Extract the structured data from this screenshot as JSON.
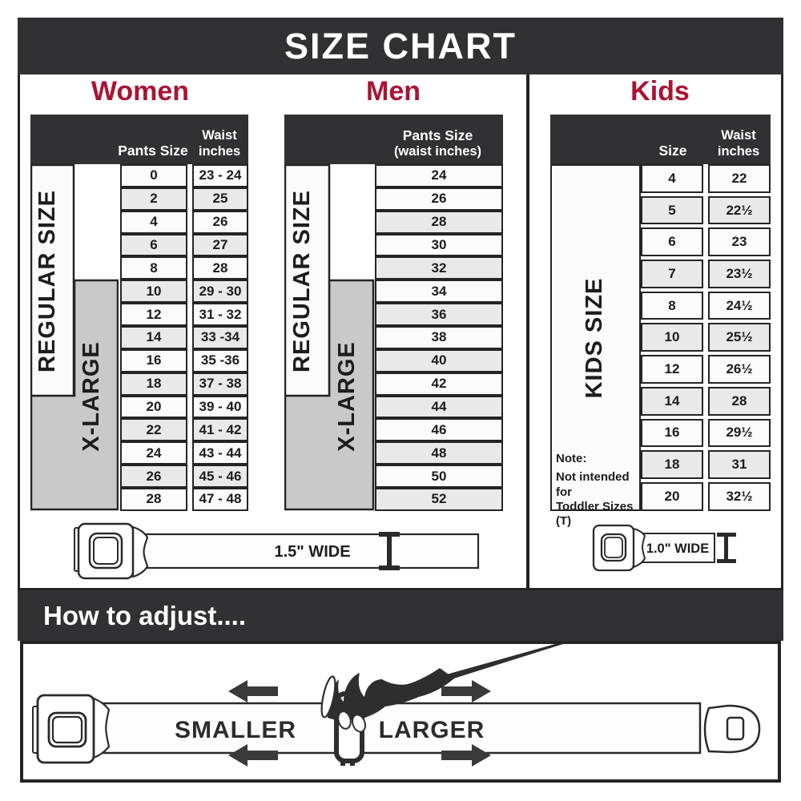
{
  "title": "SIZE CHART",
  "colors": {
    "dark_bar": "#313133",
    "heading_red": "#a91434",
    "row_shade": "#e9e9e9",
    "label_gray": "#c9c9c9",
    "border": "#242424"
  },
  "sections": {
    "women": {
      "label": "Women",
      "col1_header": "Pants Size",
      "col2_header_line1": "Waist",
      "col2_header_line2": "inches",
      "regular_label": "REGULAR SIZE",
      "xlarge_label": "X-LARGE",
      "rows": [
        {
          "size": "0",
          "waist": "23 - 24",
          "shaded": false
        },
        {
          "size": "2",
          "waist": "25",
          "shaded": true
        },
        {
          "size": "4",
          "waist": "26",
          "shaded": false
        },
        {
          "size": "6",
          "waist": "27",
          "shaded": true
        },
        {
          "size": "8",
          "waist": "28",
          "shaded": false
        },
        {
          "size": "10",
          "waist": "29 - 30",
          "shaded": true
        },
        {
          "size": "12",
          "waist": "31 - 32",
          "shaded": false
        },
        {
          "size": "14",
          "waist": "33 -34",
          "shaded": true
        },
        {
          "size": "16",
          "waist": "35 -36",
          "shaded": false
        },
        {
          "size": "18",
          "waist": "37 - 38",
          "shaded": true
        },
        {
          "size": "20",
          "waist": "39 - 40",
          "shaded": false
        },
        {
          "size": "22",
          "waist": "41 - 42",
          "shaded": true
        },
        {
          "size": "24",
          "waist": "43 - 44",
          "shaded": false
        },
        {
          "size": "26",
          "waist": "45 - 46",
          "shaded": true
        },
        {
          "size": "28",
          "waist": "47 - 48",
          "shaded": false
        }
      ]
    },
    "men": {
      "label": "Men",
      "header_line1": "Pants Size",
      "header_line2": "(waist inches)",
      "regular_label": "REGULAR SIZE",
      "xlarge_label": "X-LARGE",
      "rows": [
        {
          "size": "24",
          "shaded": false
        },
        {
          "size": "26",
          "shaded": false
        },
        {
          "size": "28",
          "shaded": true
        },
        {
          "size": "30",
          "shaded": false
        },
        {
          "size": "32",
          "shaded": true
        },
        {
          "size": "34",
          "shaded": false
        },
        {
          "size": "36",
          "shaded": true
        },
        {
          "size": "38",
          "shaded": false
        },
        {
          "size": "40",
          "shaded": true
        },
        {
          "size": "42",
          "shaded": false
        },
        {
          "size": "44",
          "shaded": true
        },
        {
          "size": "46",
          "shaded": false
        },
        {
          "size": "48",
          "shaded": true
        },
        {
          "size": "50",
          "shaded": false
        },
        {
          "size": "52",
          "shaded": true
        }
      ]
    },
    "kids": {
      "label": "Kids",
      "col1_header": "Size",
      "col2_header_line1": "Waist",
      "col2_header_line2": "inches",
      "side_label": "KIDS SIZE",
      "note_line1": "Note:",
      "note_line2": "Not intended for",
      "note_line3": "Toddler Sizes (T)",
      "rows": [
        {
          "size": "4",
          "waist": "22",
          "shaded": false
        },
        {
          "size": "5",
          "waist": "22½",
          "shaded": true
        },
        {
          "size": "6",
          "waist": "23",
          "shaded": false
        },
        {
          "size": "7",
          "waist": "23½",
          "shaded": true
        },
        {
          "size": "8",
          "waist": "24½",
          "shaded": false
        },
        {
          "size": "10",
          "waist": "25½",
          "shaded": true
        },
        {
          "size": "12",
          "waist": "26½",
          "shaded": false
        },
        {
          "size": "14",
          "waist": "28",
          "shaded": true
        },
        {
          "size": "16",
          "waist": "29½",
          "shaded": false
        },
        {
          "size": "18",
          "waist": "31",
          "shaded": true
        },
        {
          "size": "20",
          "waist": "32½",
          "shaded": false
        }
      ]
    }
  },
  "belts": {
    "adult_width_label": "1.5\" WIDE",
    "kids_width_label": "1.0\" WIDE"
  },
  "adjust": {
    "heading": "How to adjust....",
    "smaller_label": "SMALLER",
    "larger_label": "LARGER"
  }
}
